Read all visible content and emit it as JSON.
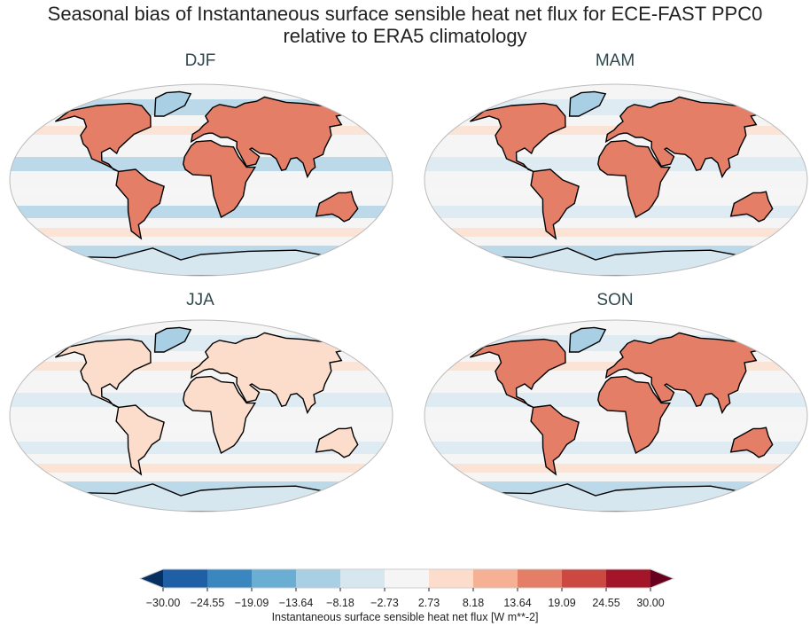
{
  "title_line1": "Seasonal bias of Instantaneous surface sensible heat net flux for ECE-FAST PPC0",
  "title_line2": "relative to ERA5 climatology",
  "panels": [
    {
      "title": "DJF",
      "land_tint": "#e47e66",
      "ocean_tint": "#a8cfe4"
    },
    {
      "title": "MAM",
      "land_tint": "#e47e66",
      "ocean_tint": "#d6e7f0"
    },
    {
      "title": "JJA",
      "land_tint": "#fcdcca",
      "ocean_tint": "#d6e7f0"
    },
    {
      "title": "SON",
      "land_tint": "#e47e66",
      "ocean_tint": "#d6e7f0"
    }
  ],
  "colorbar": {
    "label": "Instantaneous surface sensible heat net flux [W m**-2]",
    "ticks": [
      "−30.00",
      "−24.55",
      "−19.09",
      "−13.64",
      "−8.18",
      "−2.73",
      "2.73",
      "8.18",
      "13.64",
      "19.09",
      "24.55",
      "30.00"
    ],
    "colors": [
      "#1f5fa6",
      "#3a87c0",
      "#6aaed4",
      "#a8cfe4",
      "#d6e7f0",
      "#f5f5f5",
      "#fcdcca",
      "#f6b093",
      "#e47e66",
      "#cb4940",
      "#a31528"
    ],
    "under_color": "#053061",
    "over_color": "#67001f",
    "extend": "both"
  }
}
